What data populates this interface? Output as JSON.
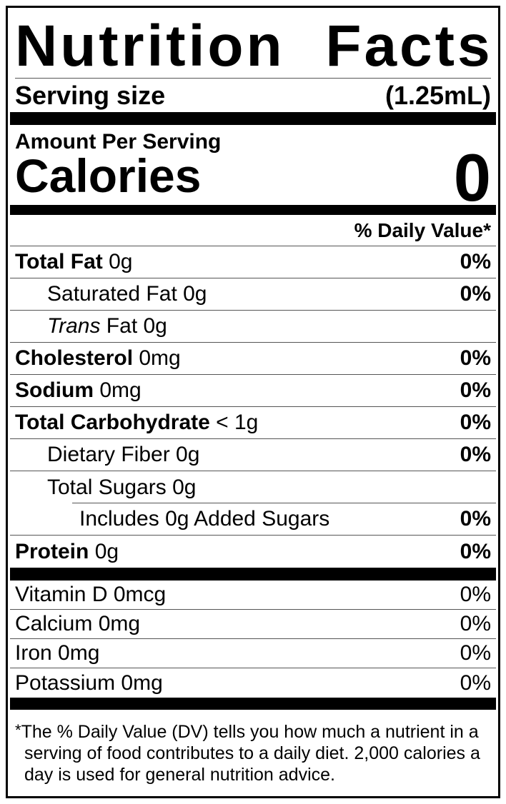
{
  "label": {
    "title": "Nutrition Facts",
    "serving_size": {
      "label": "Serving size",
      "value": "(1.25mL)"
    },
    "amount_per_serving": "Amount Per Serving",
    "calories": {
      "label": "Calories",
      "value": "0"
    },
    "daily_value_header": "% Daily Value*",
    "nutrient_rows": [
      {
        "bold": "Total Fat",
        "text": " 0g",
        "dv": "0%",
        "dv_bold": true,
        "indent": 0,
        "sep": "full"
      },
      {
        "text": "Saturated Fat 0g",
        "dv": "0%",
        "dv_bold": true,
        "indent": 1,
        "sep": "full"
      },
      {
        "italic": "Trans",
        "text": " Fat 0g",
        "dv": "",
        "indent": 1,
        "sep": "full"
      },
      {
        "bold": "Cholesterol",
        "text": " 0mg",
        "dv": "0%",
        "dv_bold": true,
        "indent": 0,
        "sep": "full"
      },
      {
        "bold": "Sodium",
        "text": " 0mg",
        "dv": "0%",
        "dv_bold": true,
        "indent": 0,
        "sep": "full"
      },
      {
        "bold": "Total Carbohydrate",
        "text": " < 1g",
        "dv": "0%",
        "dv_bold": true,
        "indent": 0,
        "sep": "full"
      },
      {
        "text": "Dietary Fiber 0g",
        "dv": "0%",
        "dv_bold": true,
        "indent": 1,
        "sep": "full"
      },
      {
        "text": "Total Sugars 0g",
        "dv": "",
        "indent": 1,
        "sep": "indent"
      },
      {
        "text": "Includes 0g Added Sugars",
        "dv": "0%",
        "dv_bold": true,
        "indent": 2,
        "sep": "full"
      },
      {
        "bold": "Protein",
        "text": " 0g",
        "dv": "0%",
        "dv_bold": true,
        "indent": 0,
        "sep": "none"
      }
    ],
    "vitamin_rows": [
      {
        "text": "Vitamin D 0mcg",
        "dv": "0%",
        "dv_bold": false,
        "indent": 0,
        "sep": "full"
      },
      {
        "text": "Calcium 0mg",
        "dv": "0%",
        "dv_bold": false,
        "indent": 0,
        "sep": "full"
      },
      {
        "text": "Iron 0mg",
        "dv": "0%",
        "dv_bold": false,
        "indent": 0,
        "sep": "full"
      },
      {
        "text": "Potassium 0mg",
        "dv": "0%",
        "dv_bold": false,
        "indent": 0,
        "sep": "none"
      }
    ],
    "footnote": {
      "marker": "*",
      "lines": [
        "The % Daily Value (DV) tells you how much a nutrient in a",
        "serving of food contributes to a daily diet. 2,000 calories a",
        "day is used for general nutrition advice."
      ]
    },
    "colors": {
      "text": "#000000",
      "separator": "#555555",
      "background": "#ffffff"
    }
  }
}
